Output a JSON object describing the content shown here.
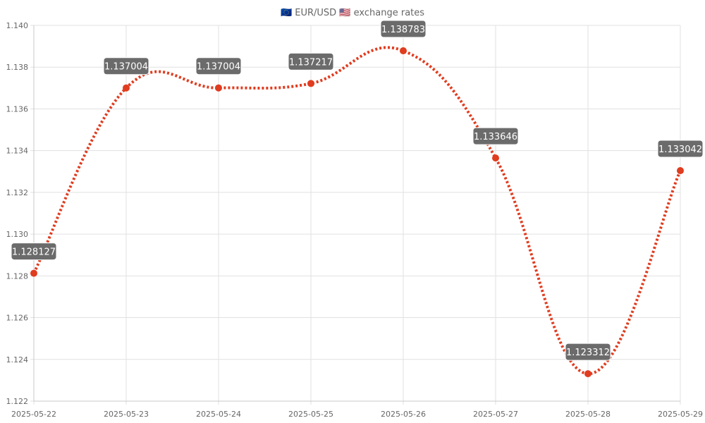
{
  "chart_data": {
    "type": "line",
    "title": "🇪🇺 EUR/USD 🇺🇸 exchange rates",
    "categories": [
      "2025-05-22",
      "2025-05-23",
      "2025-05-24",
      "2025-05-25",
      "2025-05-26",
      "2025-05-27",
      "2025-05-28",
      "2025-05-29"
    ],
    "series": [
      {
        "values": [
          1.128127,
          1.137004,
          1.137004,
          1.137217,
          1.138783,
          1.133646,
          1.123312,
          1.133042
        ],
        "labels": [
          "1.128127",
          "1.137004",
          "1.137004",
          "1.137217",
          "1.138783",
          "1.133646",
          "1.123312",
          "1.133042"
        ],
        "color": "#e03c1f",
        "line_style": "dotted",
        "smooth": true
      }
    ],
    "y_ticks": [
      "1.122",
      "1.124",
      "1.126",
      "1.128",
      "1.130",
      "1.132",
      "1.134",
      "1.136",
      "1.138",
      "1.140"
    ],
    "ylim": [
      1.122,
      1.14
    ],
    "grid": true,
    "legend": "none",
    "data_label_background": "#6b6b6b"
  }
}
